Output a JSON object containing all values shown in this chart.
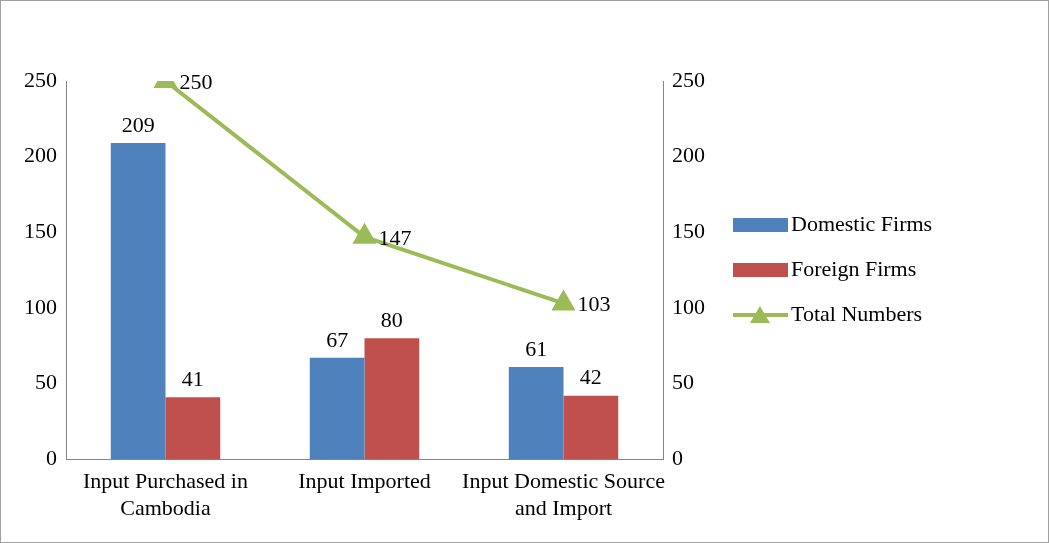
{
  "chart_data": {
    "type": "bar",
    "categories": [
      "Input Purchased in Cambodia",
      "Input Imported",
      "Input Domestic Source and Import"
    ],
    "series": [
      {
        "name": "Domestic Firms",
        "color": "#4f81bd",
        "values": [
          209,
          67,
          61
        ]
      },
      {
        "name": "Foreign Firms",
        "color": "#c0504d",
        "values": [
          41,
          80,
          42
        ]
      },
      {
        "name": "Total Numbers",
        "type": "line",
        "axis": "y2",
        "color": "#9bbb59",
        "marker": "triangle",
        "values": [
          250,
          147,
          103
        ]
      }
    ],
    "ylim": [
      0,
      250
    ],
    "yticks": [
      0,
      50,
      100,
      150,
      200,
      250
    ],
    "y2lim": [
      0,
      250
    ],
    "y2ticks": [
      0,
      50,
      100,
      150,
      200,
      250
    ],
    "grid": false,
    "legend": "right",
    "data_labels": true
  }
}
